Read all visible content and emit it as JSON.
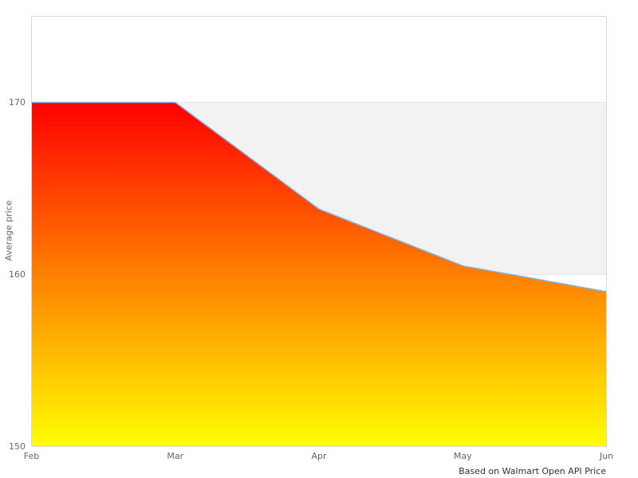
{
  "chart_data": {
    "type": "area",
    "title": "",
    "x": [
      "Feb",
      "Mar",
      "Apr",
      "May",
      "Jun"
    ],
    "values": [
      170,
      170,
      163.8,
      160.5,
      159
    ],
    "ylabel": "Average price",
    "xlabel": "",
    "yticks": [
      150,
      160,
      170
    ],
    "ylim": [
      150,
      175
    ],
    "grid": true,
    "legend": "none",
    "caption": "Based on Walmart Open API Price",
    "plot_band": {
      "from": 160,
      "to": 170,
      "color": "#f2f2f2"
    }
  },
  "colors": {
    "line": "#7cb5ec",
    "gradient_top": "#ff0000",
    "gradient_bottom": "#ffff00",
    "grid": "#e6e6e6",
    "plot_border": "#d8d8d8",
    "axis_label": "#666666",
    "caption": "#333333",
    "background": "#ffffff"
  }
}
